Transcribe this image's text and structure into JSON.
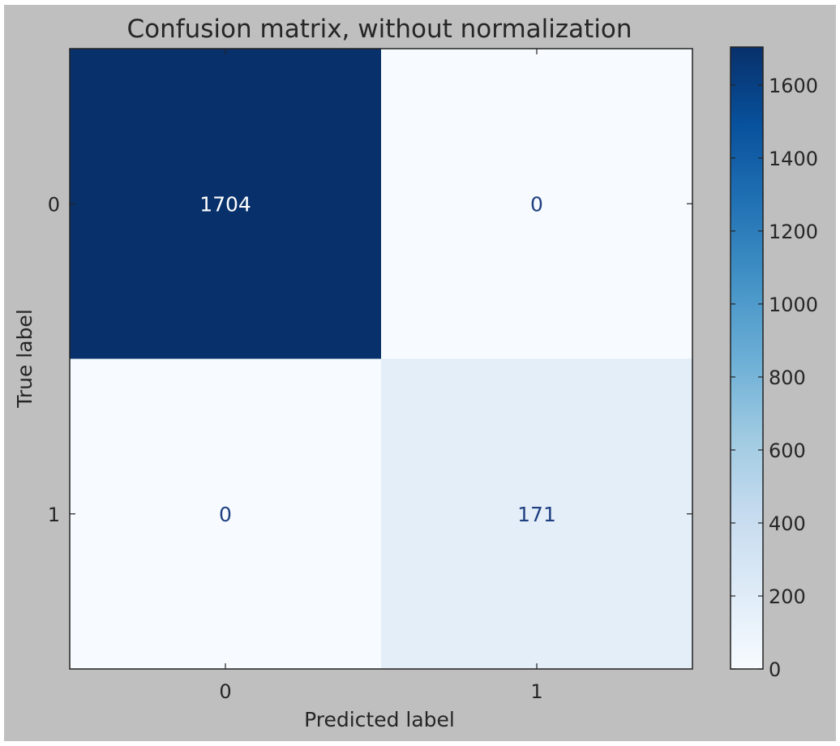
{
  "chart_data": {
    "type": "heatmap",
    "title": "Confusion matrix, without normalization",
    "xlabel": "Predicted label",
    "ylabel": "True label",
    "x_categories": [
      "0",
      "1"
    ],
    "y_categories": [
      "0",
      "1"
    ],
    "values": [
      [
        1704,
        0
      ],
      [
        0,
        171
      ]
    ],
    "colormap": "Blues",
    "colorbar": {
      "range": [
        0,
        1704
      ],
      "ticks": [
        0,
        200,
        400,
        600,
        800,
        1000,
        1200,
        1400,
        1600
      ],
      "tick_labels": [
        "0",
        "200",
        "400",
        "600",
        "800",
        "1000",
        "1200",
        "1400",
        "1600"
      ],
      "position": "right"
    },
    "colors": {
      "figure_background": "#bfbfbf",
      "dark_cell": "#133068",
      "light_cell": "#f7fbff",
      "mid_light_cell": "#e4edf7",
      "text_on_dark": "#ffffff",
      "text_on_light": "#1f3f80"
    }
  }
}
